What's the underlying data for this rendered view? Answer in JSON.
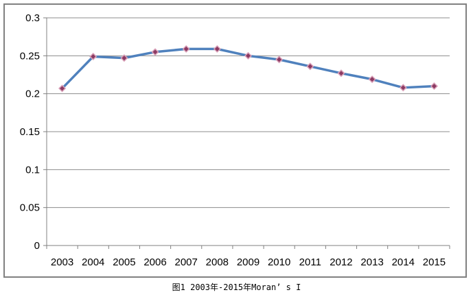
{
  "caption": "图1 2003年-2015年Moran’ s I",
  "chart_data": {
    "type": "line",
    "title": "",
    "xlabel": "",
    "ylabel": "",
    "categories": [
      "2003",
      "2004",
      "2005",
      "2006",
      "2007",
      "2008",
      "2009",
      "2010",
      "2011",
      "2012",
      "2013",
      "2014",
      "2015"
    ],
    "series": [
      {
        "values": [
          0.207,
          0.249,
          0.247,
          0.255,
          0.259,
          0.259,
          0.25,
          0.245,
          0.236,
          0.227,
          0.219,
          0.208,
          0.21
        ]
      }
    ],
    "ylim": [
      0,
      0.3
    ],
    "yticks": [
      "0",
      "0.05",
      "0.1",
      "0.15",
      "0.2",
      "0.25",
      "0.3"
    ],
    "ytick_values": [
      0,
      0.05,
      0.1,
      0.15,
      0.2,
      0.25,
      0.3
    ],
    "grid": true,
    "legend": "none",
    "colors": {
      "line": "#4f81bd",
      "marker_fill": "#8b3a62",
      "marker_edge": "#d9a0b8",
      "grid": "#8c8c8c",
      "axis": "#808080"
    }
  }
}
